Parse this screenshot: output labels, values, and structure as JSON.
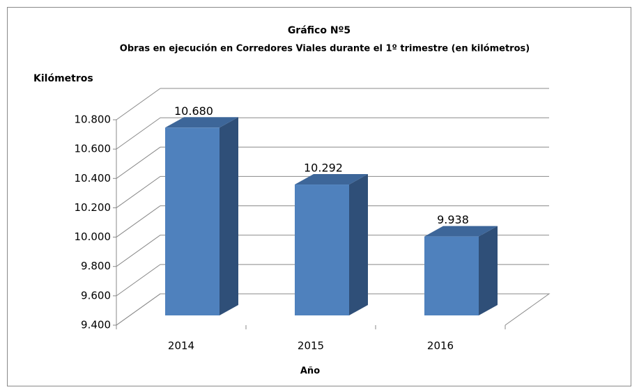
{
  "chart_data": {
    "type": "bar3d",
    "title": "Gráfico Nº5",
    "subtitle": "Obras en ejecución en Corredores Viales durante el 1º trimestre (en kilómetros)",
    "y_label": "Kilómetros",
    "x_label": "Año",
    "categories": [
      "2014",
      "2015",
      "2016"
    ],
    "values": [
      10680,
      10292,
      9938
    ],
    "value_labels": [
      "10.680",
      "10.292",
      "9.938"
    ],
    "color": "#4f81bd",
    "ylim": [
      9400,
      10800
    ],
    "yticks": [
      {
        "value": 9400,
        "label": "9.400"
      },
      {
        "value": 9600,
        "label": "9.600"
      },
      {
        "value": 9800,
        "label": "9.800"
      },
      {
        "value": 10000,
        "label": "10.000"
      },
      {
        "value": 10200,
        "label": "10.200"
      },
      {
        "value": 10400,
        "label": "10.400"
      },
      {
        "value": 10600,
        "label": "10.600"
      },
      {
        "value": 10800,
        "label": "10.800"
      }
    ],
    "grid": true
  }
}
